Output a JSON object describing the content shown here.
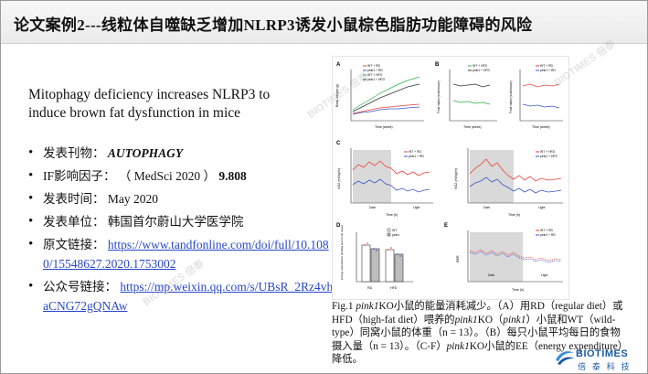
{
  "slide": {
    "title": "论文案例2---线粒体自噬缺乏增加NLRP3诱发小鼠棕色脂肪功能障碍的风险",
    "headline": "Mitophagy deficiency increases NLRP3 to induce brown fat dysfunction in mice",
    "watermark": "BIOTIMES 倍泰"
  },
  "info": {
    "journal_label": "发表刊物：",
    "journal": "AUTOPHAGY",
    "if_label": "IF影响因子：",
    "if_source": "（ MedSci 2020 ）",
    "if_value": "9.808",
    "date_label": "发表时间：",
    "date": "May 2020",
    "unit_label": "发表单位：",
    "unit": "韩国首尔蔚山大学医学院",
    "link_label": "原文链接：",
    "link": "https://www.tandfonline.com/doi/full/10.1080/15548627.2020.1753002",
    "wechat_label": "公众号链接：",
    "wechat": "https://mp.weixin.qq.com/s/UBsR_2Rz4vhaCNG72gQNAw"
  },
  "figure": {
    "panels": {
      "A": {
        "letter": "A",
        "ylabel": "Body weight (g)",
        "xlabel": "Time (week)",
        "legend": [
          "WT + RD",
          "pink1 + RD",
          "WT + HFD",
          "pink1 + HFD"
        ]
      },
      "B": {
        "letter": "B",
        "ylabel": "Food intake (kcal/mouse)",
        "xlabel": "Time (week)",
        "legend": [
          "WT + HFD",
          "pink1 + HFD",
          "WT + RD",
          "pink1 + RD"
        ]
      },
      "C": {
        "letter": "C",
        "ylabel": "VO2 (ml/kg/hr)",
        "xlabel": "Time (h)",
        "legend": [
          "WT + RD",
          "pink1 + RD",
          "WT + HFD",
          "pink1 + HFD"
        ],
        "dark": "Dark",
        "light": "Light"
      },
      "D": {
        "letter": "D",
        "ylabel": "Energy expenditure (kcal/kg lean body mass)",
        "legend": [
          "WT",
          "pink1"
        ],
        "categories": [
          "RD",
          "HFD"
        ]
      },
      "E": {
        "letter": "E",
        "ylabel": "RER",
        "xlabel": "Time (h)",
        "legend": [
          "WT + RD",
          "pink1 + RD"
        ],
        "dark": "Dark",
        "light": "Light"
      }
    },
    "colors": {
      "wt": "#e8413a",
      "pink1": "#3a56c8",
      "wt_hfd": "#2bb04a",
      "pink1_hfd": "#333333"
    }
  },
  "caption": {
    "fig": "Fig.1",
    "gene": "pink1",
    "t1": "KO小鼠的能量消耗减少。（A）用RD（regular diet）或HFD（high-fat diet）喂养的",
    "t2": "KO（",
    "t3": "）小鼠和WT（wild-type）同窝小鼠的体重（n = 13）。（B）每只小鼠平均每日的食物摄入量（n = 13）。（C-F）",
    "t4": "KO小鼠的EE（energy expenditure）降低。"
  },
  "logo": {
    "name": "BIOTIMES",
    "cn": "倍 泰 科 技"
  }
}
